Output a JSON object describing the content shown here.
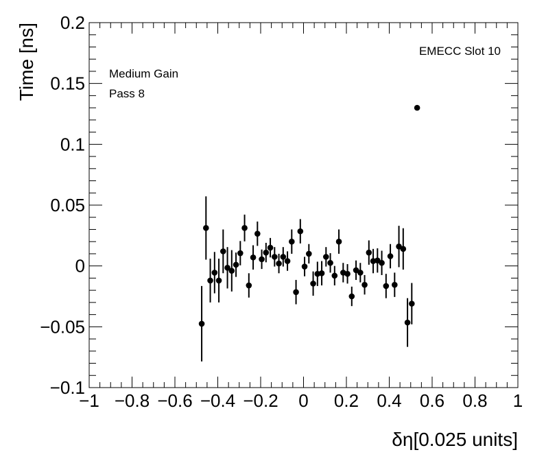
{
  "chart_data": {
    "type": "scatter",
    "title": "",
    "xlabel": "δη[0.025 units]",
    "ylabel": "Time [ns]",
    "xlim": [
      -1,
      1
    ],
    "ylim": [
      -0.1,
      0.2
    ],
    "x_ticks": [
      -1,
      -0.8,
      -0.6,
      -0.4,
      -0.2,
      0,
      0.2,
      0.4,
      0.6,
      0.8,
      1
    ],
    "x_tick_labels": [
      "−1",
      "−0.8",
      "−0.6",
      "−0.4",
      "−0.2",
      "0",
      "0.2",
      "0.4",
      "0.6",
      "0.8",
      "1"
    ],
    "y_ticks": [
      -0.1,
      -0.05,
      0,
      0.05,
      0.1,
      0.15,
      0.2
    ],
    "y_tick_labels": [
      "−0.1",
      "−0.05",
      "0",
      "0.05",
      "0.1",
      "0.15",
      "0.2"
    ],
    "grid": false,
    "annotations": [
      "EMECC Slot 10",
      "Medium Gain",
      "Pass 8"
    ],
    "marker_color": "#000000",
    "series": [
      {
        "points": [
          {
            "x": -0.475,
            "y": -0.0475,
            "err": 0.031
          },
          {
            "x": -0.455,
            "y": 0.0312,
            "err": 0.026
          },
          {
            "x": -0.435,
            "y": -0.012,
            "err": 0.018
          },
          {
            "x": -0.415,
            "y": -0.0055,
            "err": 0.017
          },
          {
            "x": -0.395,
            "y": -0.012,
            "err": 0.018
          },
          {
            "x": -0.375,
            "y": 0.012,
            "err": 0.018
          },
          {
            "x": -0.355,
            "y": -0.0015,
            "err": 0.017
          },
          {
            "x": -0.335,
            "y": -0.004,
            "err": 0.017
          },
          {
            "x": -0.315,
            "y": 0.001,
            "err": 0.01
          },
          {
            "x": -0.295,
            "y": 0.0105,
            "err": 0.01
          },
          {
            "x": -0.275,
            "y": 0.0312,
            "err": 0.011
          },
          {
            "x": -0.255,
            "y": -0.016,
            "err": 0.01
          },
          {
            "x": -0.235,
            "y": 0.007,
            "err": 0.01
          },
          {
            "x": -0.215,
            "y": 0.0265,
            "err": 0.01
          },
          {
            "x": -0.195,
            "y": 0.0055,
            "err": 0.008
          },
          {
            "x": -0.175,
            "y": 0.011,
            "err": 0.008
          },
          {
            "x": -0.155,
            "y": 0.015,
            "err": 0.008
          },
          {
            "x": -0.135,
            "y": 0.0075,
            "err": 0.008
          },
          {
            "x": -0.115,
            "y": 0.002,
            "err": 0.008
          },
          {
            "x": -0.095,
            "y": 0.0075,
            "err": 0.008
          },
          {
            "x": -0.075,
            "y": 0.004,
            "err": 0.008
          },
          {
            "x": -0.055,
            "y": 0.02,
            "err": 0.01
          },
          {
            "x": -0.035,
            "y": -0.0215,
            "err": 0.01
          },
          {
            "x": -0.015,
            "y": 0.0285,
            "err": 0.01
          },
          {
            "x": 0.005,
            "y": -0.0005,
            "err": 0.008
          },
          {
            "x": 0.025,
            "y": 0.01,
            "err": 0.008
          },
          {
            "x": 0.045,
            "y": -0.0145,
            "err": 0.01
          },
          {
            "x": 0.065,
            "y": -0.0065,
            "err": 0.01
          },
          {
            "x": 0.085,
            "y": -0.006,
            "err": 0.01
          },
          {
            "x": 0.105,
            "y": 0.0075,
            "err": 0.008
          },
          {
            "x": 0.125,
            "y": 0.0025,
            "err": 0.008
          },
          {
            "x": 0.145,
            "y": -0.008,
            "err": 0.008
          },
          {
            "x": 0.165,
            "y": 0.02,
            "err": 0.01
          },
          {
            "x": 0.185,
            "y": -0.0055,
            "err": 0.008
          },
          {
            "x": 0.205,
            "y": -0.0065,
            "err": 0.008
          },
          {
            "x": 0.225,
            "y": -0.025,
            "err": 0.008
          },
          {
            "x": 0.245,
            "y": -0.0035,
            "err": 0.008
          },
          {
            "x": 0.265,
            "y": -0.0055,
            "err": 0.008
          },
          {
            "x": 0.285,
            "y": -0.0155,
            "err": 0.008
          },
          {
            "x": 0.305,
            "y": 0.011,
            "err": 0.01
          },
          {
            "x": 0.325,
            "y": 0.004,
            "err": 0.01
          },
          {
            "x": 0.345,
            "y": 0.0045,
            "err": 0.01
          },
          {
            "x": 0.365,
            "y": 0.0025,
            "err": 0.01
          },
          {
            "x": 0.385,
            "y": -0.0165,
            "err": 0.01
          },
          {
            "x": 0.405,
            "y": 0.008,
            "err": 0.01
          },
          {
            "x": 0.425,
            "y": -0.0155,
            "err": 0.01
          },
          {
            "x": 0.445,
            "y": 0.016,
            "err": 0.017
          },
          {
            "x": 0.465,
            "y": 0.014,
            "err": 0.017
          },
          {
            "x": 0.485,
            "y": -0.0465,
            "err": 0.02
          },
          {
            "x": 0.505,
            "y": -0.031,
            "err": 0.017
          },
          {
            "x": 0.53,
            "y": 0.13,
            "err": 0
          }
        ]
      }
    ]
  }
}
